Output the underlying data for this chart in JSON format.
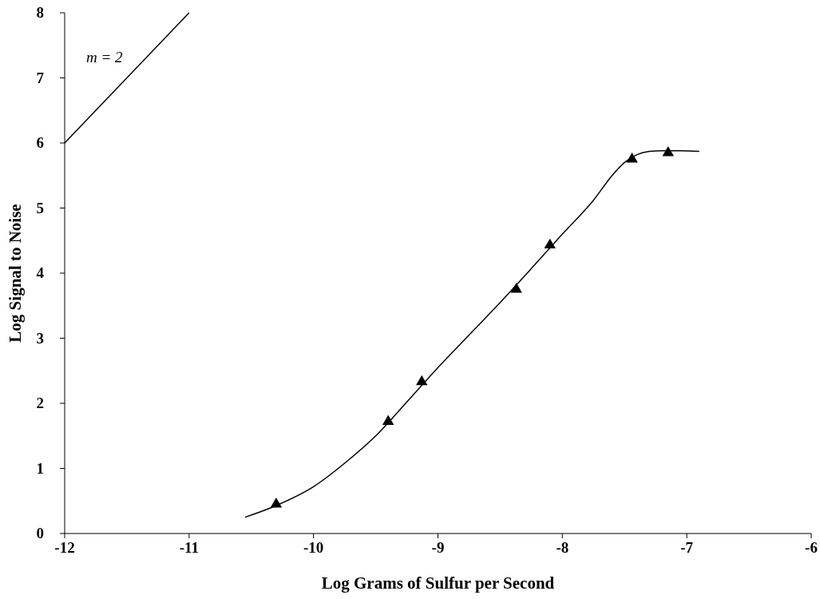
{
  "chart_data": {
    "type": "scatter",
    "xlabel": "Log Grams of Sulfur per Second",
    "ylabel": "Log Signal to Noise",
    "xlim": [
      -12,
      -6
    ],
    "xticks": [
      -12,
      -11,
      -10,
      -9,
      -8,
      -7,
      -6
    ],
    "ylim": [
      0,
      8
    ],
    "yticks": [
      0,
      1,
      2,
      3,
      4,
      5,
      6,
      7,
      8
    ],
    "grid": false,
    "series": [
      {
        "marker": "triangle",
        "color": "#000000",
        "x": [
          -10.3,
          -9.4,
          -9.13,
          -8.37,
          -8.1,
          -7.44,
          -7.15
        ],
        "values": [
          0.45,
          1.72,
          2.33,
          3.75,
          4.43,
          5.75,
          5.85
        ]
      },
      {
        "type": "line",
        "color": "#000000",
        "line_style": "solid",
        "x": [
          -10.55,
          -10.3,
          -10,
          -9.75,
          -9.5,
          -9.25,
          -9,
          -8.75,
          -8.5,
          -8.25,
          -8,
          -7.75,
          -7.6,
          -7.5,
          -7.4,
          -7.3,
          -7.2,
          -7.05,
          -6.9
        ],
        "values": [
          0.25,
          0.43,
          0.72,
          1.08,
          1.5,
          2.02,
          2.55,
          3.05,
          3.55,
          4.07,
          4.6,
          5.12,
          5.5,
          5.7,
          5.82,
          5.87,
          5.88,
          5.88,
          5.87
        ]
      },
      {
        "type": "line",
        "color": "#000000",
        "line_style": "solid",
        "x": [
          -12,
          -11
        ],
        "values": [
          6,
          8
        ]
      }
    ],
    "annotations": [
      "m = 2"
    ]
  }
}
